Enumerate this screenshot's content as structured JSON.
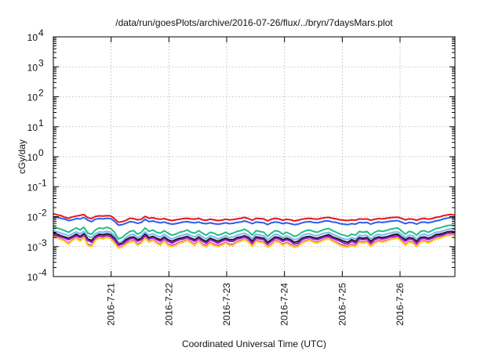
{
  "chart_data": {
    "type": "line",
    "title": "/data/run/goesPlots/archive/2016-07-26/flux/../bryn/7daysMars.plot",
    "xlabel": "Coordinated Universal Time (UTC)",
    "ylabel": "cGy/day",
    "yscale": "log",
    "ylim": [
      0.0001,
      10000
    ],
    "y_ticks": [
      {
        "value": 0.0001,
        "exp": "-4"
      },
      {
        "value": 0.001,
        "exp": "-3"
      },
      {
        "value": 0.01,
        "exp": "-2"
      },
      {
        "value": 0.1,
        "exp": "-1"
      },
      {
        "value": 1,
        "exp": "0"
      },
      {
        "value": 10,
        "exp": "1"
      },
      {
        "value": 100,
        "exp": "2"
      },
      {
        "value": 1000,
        "exp": "3"
      },
      {
        "value": 10000,
        "exp": "4"
      }
    ],
    "y_tick_base": "10",
    "xlim": [
      20.0,
      26.95
    ],
    "x_ticks": [
      {
        "value": 21,
        "label": "2016-7-21"
      },
      {
        "value": 22,
        "label": "2016-7-22"
      },
      {
        "value": 23,
        "label": "2016-7-23"
      },
      {
        "value": 24,
        "label": "2016-7-24"
      },
      {
        "value": 25,
        "label": "2016-7-25"
      },
      {
        "value": 26,
        "label": "2016-7-26"
      }
    ],
    "grid": true,
    "series": [
      {
        "color": "#e8141c",
        "values": [
          0.0125,
          0.0115,
          0.0108,
          0.0095,
          0.0088,
          0.0098,
          0.0105,
          0.011,
          0.0118,
          0.0092,
          0.0086,
          0.0102,
          0.0106,
          0.0104,
          0.0108,
          0.0106,
          0.0085,
          0.0065,
          0.0068,
          0.0075,
          0.0088,
          0.0086,
          0.0078,
          0.0082,
          0.0102,
          0.0088,
          0.0092,
          0.0085,
          0.0082,
          0.0086,
          0.0078,
          0.0074,
          0.0078,
          0.0082,
          0.0086,
          0.0088,
          0.0084,
          0.0082,
          0.0088,
          0.0078,
          0.0076,
          0.0082,
          0.0078,
          0.0074,
          0.0076,
          0.0082,
          0.0078,
          0.008,
          0.0084,
          0.0088,
          0.0094,
          0.0086,
          0.0076,
          0.0088,
          0.0086,
          0.0084,
          0.0072,
          0.0082,
          0.0088,
          0.0084,
          0.0076,
          0.0082,
          0.0078,
          0.0072,
          0.0076,
          0.0082,
          0.0086,
          0.0088,
          0.0084,
          0.0082,
          0.0088,
          0.0092,
          0.0094,
          0.0088,
          0.0084,
          0.0078,
          0.0076,
          0.0074,
          0.0078,
          0.0076,
          0.0084,
          0.0082,
          0.0084,
          0.0076,
          0.0082,
          0.0086,
          0.0084,
          0.0088,
          0.0092,
          0.0094,
          0.0096,
          0.0088,
          0.0078,
          0.0084,
          0.0082,
          0.0076,
          0.0084,
          0.0088,
          0.0082,
          0.0086,
          0.0094,
          0.0098,
          0.0108,
          0.0114,
          0.0118,
          0.0112
        ]
      },
      {
        "color": "#2a5ef0",
        "values": [
          0.0098,
          0.0094,
          0.0088,
          0.0082,
          0.0074,
          0.0078,
          0.0086,
          0.0084,
          0.0094,
          0.0076,
          0.0068,
          0.0082,
          0.0086,
          0.0084,
          0.0088,
          0.0086,
          0.007,
          0.0052,
          0.0054,
          0.006,
          0.0068,
          0.0066,
          0.006,
          0.0064,
          0.0082,
          0.0068,
          0.0072,
          0.0066,
          0.0062,
          0.0066,
          0.006,
          0.0056,
          0.0058,
          0.0062,
          0.0066,
          0.0068,
          0.0064,
          0.0062,
          0.0066,
          0.006,
          0.0058,
          0.0062,
          0.0058,
          0.0056,
          0.0058,
          0.0062,
          0.0058,
          0.006,
          0.0064,
          0.0066,
          0.0072,
          0.0066,
          0.0058,
          0.0066,
          0.0064,
          0.0062,
          0.0054,
          0.0062,
          0.0066,
          0.0064,
          0.0058,
          0.0062,
          0.0058,
          0.0054,
          0.0056,
          0.0062,
          0.0066,
          0.0068,
          0.0064,
          0.0062,
          0.0066,
          0.0072,
          0.0072,
          0.0066,
          0.0064,
          0.0058,
          0.0056,
          0.0054,
          0.0058,
          0.0056,
          0.0064,
          0.0062,
          0.0064,
          0.0056,
          0.0062,
          0.0066,
          0.0064,
          0.0066,
          0.007,
          0.0072,
          0.0074,
          0.0066,
          0.0058,
          0.0064,
          0.0062,
          0.0056,
          0.0064,
          0.0066,
          0.0062,
          0.0066,
          0.0072,
          0.0076,
          0.0084,
          0.009,
          0.0094,
          0.009
        ]
      },
      {
        "color": "#1fbf8a",
        "values": [
          0.0046,
          0.0042,
          0.0038,
          0.0034,
          0.003,
          0.0036,
          0.0042,
          0.0036,
          0.0044,
          0.0028,
          0.0026,
          0.0036,
          0.0042,
          0.004,
          0.0044,
          0.004,
          0.003,
          0.0018,
          0.002,
          0.0026,
          0.0032,
          0.0034,
          0.0026,
          0.003,
          0.0042,
          0.0032,
          0.0036,
          0.003,
          0.0028,
          0.0034,
          0.0028,
          0.0024,
          0.0026,
          0.003,
          0.0032,
          0.0036,
          0.003,
          0.0028,
          0.0034,
          0.0028,
          0.0024,
          0.003,
          0.0028,
          0.0024,
          0.0026,
          0.003,
          0.0026,
          0.0028,
          0.0032,
          0.0034,
          0.0038,
          0.0032,
          0.0024,
          0.0034,
          0.0032,
          0.003,
          0.0022,
          0.0028,
          0.0034,
          0.0032,
          0.0026,
          0.003,
          0.0026,
          0.0022,
          0.0024,
          0.003,
          0.0034,
          0.0036,
          0.0032,
          0.003,
          0.0034,
          0.0038,
          0.004,
          0.0034,
          0.003,
          0.0026,
          0.0024,
          0.0022,
          0.0026,
          0.0024,
          0.0032,
          0.003,
          0.0032,
          0.0024,
          0.003,
          0.0034,
          0.0032,
          0.0034,
          0.0038,
          0.004,
          0.0042,
          0.0034,
          0.0026,
          0.0032,
          0.003,
          0.0024,
          0.0032,
          0.0034,
          0.003,
          0.0034,
          0.004,
          0.0042,
          0.0046,
          0.005,
          0.0052,
          0.005
        ]
      },
      {
        "color": "#7fb4f0",
        "values": [
          0.0034,
          0.0031,
          0.0028,
          0.0026,
          0.0023,
          0.0027,
          0.0031,
          0.0027,
          0.0032,
          0.0022,
          0.002,
          0.0027,
          0.0031,
          0.003,
          0.0032,
          0.003,
          0.0023,
          0.0014,
          0.0015,
          0.002,
          0.0024,
          0.0026,
          0.002,
          0.0023,
          0.0031,
          0.0024,
          0.0027,
          0.0023,
          0.0021,
          0.0026,
          0.0021,
          0.0018,
          0.002,
          0.0023,
          0.0024,
          0.0027,
          0.0023,
          0.0021,
          0.0026,
          0.0021,
          0.0018,
          0.0023,
          0.0021,
          0.0018,
          0.002,
          0.0023,
          0.002,
          0.0021,
          0.0024,
          0.0026,
          0.0028,
          0.0024,
          0.0018,
          0.0026,
          0.0024,
          0.0023,
          0.0017,
          0.0021,
          0.0026,
          0.0024,
          0.002,
          0.0023,
          0.002,
          0.0017,
          0.0018,
          0.0023,
          0.0026,
          0.0027,
          0.0024,
          0.0023,
          0.0026,
          0.0028,
          0.003,
          0.0026,
          0.0023,
          0.002,
          0.0018,
          0.0017,
          0.002,
          0.0018,
          0.0024,
          0.0023,
          0.0024,
          0.0018,
          0.0023,
          0.0026,
          0.0024,
          0.0026,
          0.0028,
          0.003,
          0.0031,
          0.0026,
          0.002,
          0.0024,
          0.0023,
          0.0018,
          0.0024,
          0.0026,
          0.0023,
          0.0026,
          0.003,
          0.0031,
          0.0034,
          0.0037,
          0.0039,
          0.0037
        ]
      },
      {
        "color": "#1a1a1a",
        "values": [
          0.0028,
          0.0026,
          0.0023,
          0.0021,
          0.0019,
          0.0022,
          0.0026,
          0.0022,
          0.0027,
          0.0018,
          0.0016,
          0.0022,
          0.0026,
          0.0025,
          0.0027,
          0.0025,
          0.0019,
          0.0012,
          0.0013,
          0.0017,
          0.002,
          0.0021,
          0.0017,
          0.0019,
          0.0026,
          0.002,
          0.0022,
          0.0019,
          0.0017,
          0.0021,
          0.0017,
          0.0015,
          0.0017,
          0.0019,
          0.002,
          0.0022,
          0.0019,
          0.0017,
          0.0021,
          0.0017,
          0.0015,
          0.0019,
          0.0017,
          0.0015,
          0.0017,
          0.0019,
          0.0017,
          0.0017,
          0.002,
          0.0021,
          0.0023,
          0.002,
          0.0015,
          0.0021,
          0.002,
          0.0019,
          0.0014,
          0.0017,
          0.0021,
          0.002,
          0.0017,
          0.0019,
          0.0017,
          0.0014,
          0.0015,
          0.0019,
          0.0021,
          0.0022,
          0.002,
          0.0019,
          0.0021,
          0.0023,
          0.0025,
          0.0021,
          0.0019,
          0.0017,
          0.0015,
          0.0014,
          0.0017,
          0.0015,
          0.002,
          0.0019,
          0.002,
          0.0015,
          0.0019,
          0.0021,
          0.002,
          0.0021,
          0.0023,
          0.0025,
          0.0026,
          0.0021,
          0.0017,
          0.002,
          0.0019,
          0.0015,
          0.002,
          0.0021,
          0.0019,
          0.0021,
          0.0025,
          0.0026,
          0.0028,
          0.0031,
          0.0032,
          0.0031
        ]
      },
      {
        "color": "#8a1ec8",
        "values": [
          0.0025,
          0.0023,
          0.0021,
          0.0019,
          0.0017,
          0.002,
          0.0023,
          0.002,
          0.0024,
          0.0016,
          0.0014,
          0.002,
          0.0023,
          0.0022,
          0.0024,
          0.0022,
          0.0017,
          0.0011,
          0.0012,
          0.0015,
          0.0018,
          0.0019,
          0.0015,
          0.0017,
          0.0023,
          0.0018,
          0.002,
          0.0017,
          0.0015,
          0.0019,
          0.0015,
          0.0013,
          0.0015,
          0.0017,
          0.0018,
          0.002,
          0.0017,
          0.0015,
          0.0019,
          0.0015,
          0.0013,
          0.0017,
          0.0015,
          0.0013,
          0.0015,
          0.0017,
          0.0015,
          0.0015,
          0.0018,
          0.0019,
          0.0021,
          0.0018,
          0.0013,
          0.0019,
          0.0018,
          0.0017,
          0.0012,
          0.0015,
          0.0019,
          0.0018,
          0.0015,
          0.0017,
          0.0015,
          0.0012,
          0.0013,
          0.0017,
          0.0019,
          0.002,
          0.0018,
          0.0017,
          0.0019,
          0.0021,
          0.0022,
          0.0019,
          0.0017,
          0.0015,
          0.0013,
          0.0012,
          0.0015,
          0.0013,
          0.0018,
          0.0017,
          0.0018,
          0.0013,
          0.0017,
          0.0019,
          0.0018,
          0.0019,
          0.0021,
          0.0022,
          0.0023,
          0.0019,
          0.0015,
          0.0018,
          0.0017,
          0.0013,
          0.0018,
          0.0019,
          0.0017,
          0.0019,
          0.0022,
          0.0023,
          0.0025,
          0.0028,
          0.0029,
          0.0028
        ]
      },
      {
        "color": "#f23ec4",
        "values": [
          0.0022,
          0.002,
          0.0018,
          0.0016,
          0.0013,
          0.0017,
          0.002,
          0.0016,
          0.0021,
          0.0012,
          0.0011,
          0.0017,
          0.002,
          0.0019,
          0.0021,
          0.0019,
          0.0014,
          0.00095,
          0.001,
          0.0013,
          0.0015,
          0.0016,
          0.0012,
          0.0014,
          0.002,
          0.0015,
          0.0017,
          0.0014,
          0.0012,
          0.0016,
          0.0012,
          0.0011,
          0.0012,
          0.0014,
          0.0015,
          0.0017,
          0.0014,
          0.0012,
          0.0016,
          0.0012,
          0.0011,
          0.0014,
          0.0012,
          0.0011,
          0.0012,
          0.0014,
          0.0012,
          0.0012,
          0.0015,
          0.0016,
          0.0018,
          0.0015,
          0.0011,
          0.0016,
          0.0015,
          0.0014,
          0.001,
          0.0012,
          0.0016,
          0.0015,
          0.0012,
          0.0014,
          0.0012,
          0.001,
          0.0011,
          0.0014,
          0.0016,
          0.0017,
          0.0015,
          0.0014,
          0.0016,
          0.0018,
          0.0019,
          0.0016,
          0.0014,
          0.0012,
          0.0011,
          0.001,
          0.0012,
          0.0011,
          0.0015,
          0.0014,
          0.0015,
          0.0011,
          0.0014,
          0.0016,
          0.0015,
          0.0016,
          0.0018,
          0.0019,
          0.002,
          0.0016,
          0.0012,
          0.0015,
          0.0014,
          0.0011,
          0.0015,
          0.0016,
          0.0014,
          0.0016,
          0.0019,
          0.002,
          0.0022,
          0.0024,
          0.0025,
          0.0024
        ]
      },
      {
        "color": "#ffd21a",
        "values": [
          0.0021,
          0.0019,
          0.0017,
          0.0015,
          0.0012,
          0.0016,
          0.0019,
          0.0015,
          0.002,
          0.0011,
          0.001,
          0.0016,
          0.0019,
          0.0018,
          0.002,
          0.0018,
          0.0013,
          0.0009,
          0.00095,
          0.0012,
          0.0014,
          0.0015,
          0.0011,
          0.0013,
          0.0019,
          0.0014,
          0.0016,
          0.0013,
          0.0011,
          0.0015,
          0.0011,
          0.001,
          0.0011,
          0.0013,
          0.0014,
          0.0016,
          0.0013,
          0.0011,
          0.0015,
          0.0011,
          0.001,
          0.0013,
          0.0011,
          0.001,
          0.0011,
          0.0013,
          0.0011,
          0.0011,
          0.0014,
          0.0015,
          0.0017,
          0.0014,
          0.001,
          0.0015,
          0.0014,
          0.0013,
          0.00095,
          0.0011,
          0.0015,
          0.0014,
          0.0011,
          0.0013,
          0.0011,
          0.00095,
          0.001,
          0.0013,
          0.0015,
          0.0016,
          0.0014,
          0.0013,
          0.0015,
          0.0017,
          0.0018,
          0.0015,
          0.0013,
          0.0011,
          0.001,
          0.00095,
          0.0011,
          0.001,
          0.0014,
          0.0013,
          0.0014,
          0.001,
          0.0013,
          0.0015,
          0.0014,
          0.0015,
          0.0017,
          0.0018,
          0.0019,
          0.0015,
          0.0011,
          0.0014,
          0.0013,
          0.001,
          0.0014,
          0.0015,
          0.0013,
          0.0015,
          0.0018,
          0.0019,
          0.0021,
          0.0023,
          0.0024,
          0.0023
        ]
      }
    ]
  }
}
